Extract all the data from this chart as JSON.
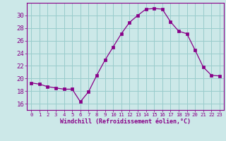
{
  "x": [
    0,
    1,
    2,
    3,
    4,
    5,
    6,
    7,
    8,
    9,
    10,
    11,
    12,
    13,
    14,
    15,
    16,
    17,
    18,
    19,
    20,
    21,
    22,
    23
  ],
  "y": [
    19.3,
    19.1,
    18.7,
    18.5,
    18.3,
    18.3,
    16.3,
    17.9,
    20.5,
    22.9,
    25.0,
    27.1,
    28.9,
    30.0,
    31.0,
    31.1,
    31.0,
    29.0,
    27.5,
    27.1,
    24.5,
    21.8,
    20.5,
    20.4
  ],
  "line_color": "#880088",
  "marker": "s",
  "marker_size": 2.5,
  "bg_color": "#cce8e8",
  "grid_color": "#99cccc",
  "xlabel": "Windchill (Refroidissement éolien,°C)",
  "ylim": [
    15.0,
    32.0
  ],
  "xlim": [
    -0.5,
    23.5
  ],
  "yticks": [
    16,
    18,
    20,
    22,
    24,
    26,
    28,
    30
  ],
  "xticks": [
    0,
    1,
    2,
    3,
    4,
    5,
    6,
    7,
    8,
    9,
    10,
    11,
    12,
    13,
    14,
    15,
    16,
    17,
    18,
    19,
    20,
    21,
    22,
    23
  ],
  "tick_color": "#880088",
  "label_color": "#880088",
  "xlabel_fontsize": 6.0,
  "ytick_fontsize": 6.5,
  "xtick_fontsize": 5.2
}
